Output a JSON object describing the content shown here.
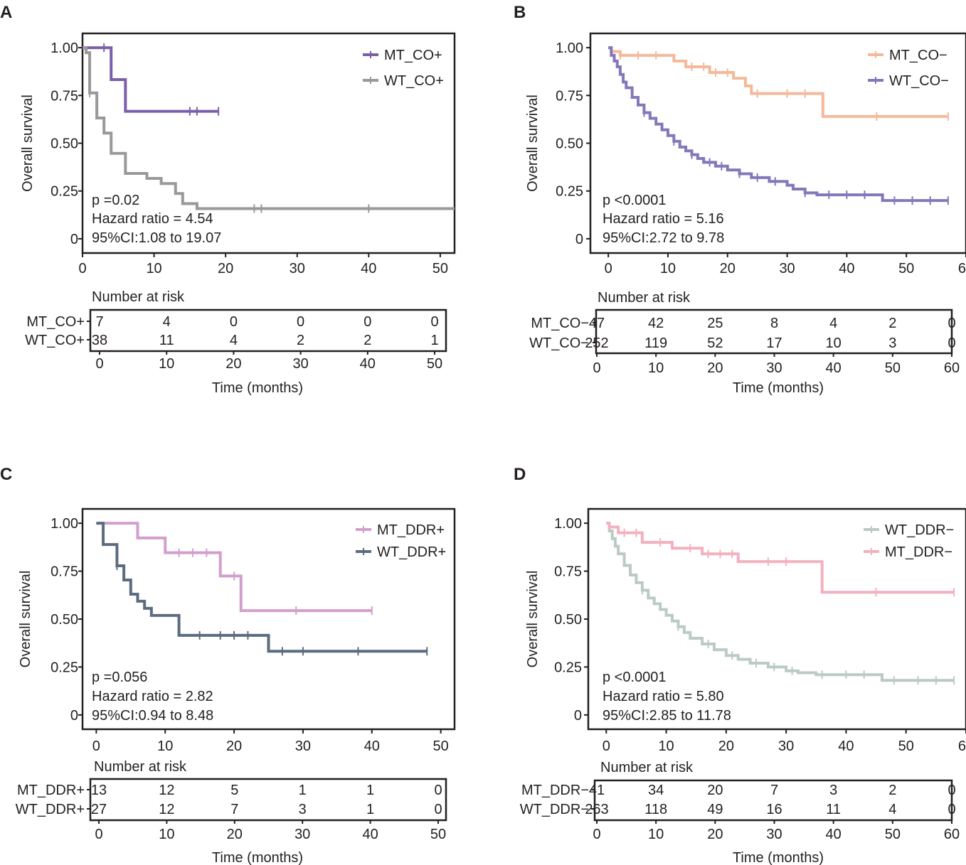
{
  "chart_data": [
    {
      "type": "line",
      "subtype": "kaplan-meier",
      "panel": "A",
      "ylabel": "Overall survival",
      "xlabel": "Time (months)",
      "xlim": [
        0,
        52
      ],
      "ylim": [
        0,
        1
      ],
      "yticks": [
        "0",
        "0.25",
        "0.50",
        "0.75",
        "1.00"
      ],
      "ytick_values": [
        0,
        0.25,
        0.5,
        0.75,
        1
      ],
      "xticks": [
        0,
        10,
        20,
        30,
        40,
        50
      ],
      "stats": [
        "p =0.02",
        "Hazard ratio = 4.54",
        "95%CI:1.08 to 19.07"
      ],
      "legend_position": "top-right",
      "series": [
        {
          "name": "MT_CO+",
          "color": "#7b5fa8",
          "steps": [
            [
              0,
              1
            ],
            [
              4,
              0.833
            ],
            [
              6,
              0.667
            ],
            [
              19,
              0.667
            ]
          ],
          "censor": [
            [
              3,
              1
            ],
            [
              15,
              0.667
            ],
            [
              16,
              0.667
            ],
            [
              19,
              0.667
            ]
          ]
        },
        {
          "name": "WT_CO+",
          "color": "#999999",
          "steps": [
            [
              0,
              1
            ],
            [
              0.5,
              0.974
            ],
            [
              1,
              0.763
            ],
            [
              2,
              0.632
            ],
            [
              3,
              0.553
            ],
            [
              4,
              0.447
            ],
            [
              6,
              0.342
            ],
            [
              9,
              0.316
            ],
            [
              11,
              0.289
            ],
            [
              13,
              0.237
            ],
            [
              14,
              0.184
            ],
            [
              16,
              0.158
            ],
            [
              52,
              0.158
            ]
          ],
          "censor": [
            [
              1,
              0.763
            ],
            [
              24,
              0.158
            ],
            [
              25,
              0.158
            ],
            [
              40,
              0.158
            ]
          ]
        }
      ],
      "risk_table": {
        "title": "Number at risk",
        "times": [
          0,
          10,
          20,
          30,
          40,
          50
        ],
        "xlim": [
          0,
          52
        ],
        "rows": [
          {
            "label": "MT_CO+",
            "values": [
              "7",
              "4",
              "0",
              "0",
              "0",
              "0"
            ]
          },
          {
            "label": "WT_CO+",
            "values": [
              "38",
              "11",
              "4",
              "2",
              "2",
              "1"
            ]
          }
        ]
      }
    },
    {
      "type": "line",
      "subtype": "kaplan-meier",
      "panel": "B",
      "ylabel": "Overall survival",
      "xlabel": "Time (months)",
      "xlim": [
        -3,
        60
      ],
      "ylim": [
        0,
        1
      ],
      "yticks": [
        "0",
        "0.25",
        "0.50",
        "0.75",
        "1.00"
      ],
      "ytick_values": [
        0,
        0.25,
        0.5,
        0.75,
        1
      ],
      "xticks": [
        0,
        10,
        20,
        30,
        40,
        50,
        60
      ],
      "stats": [
        "p <0.0001",
        "Hazard ratio = 5.16",
        "95%CI:2.72 to 9.78"
      ],
      "legend_position": "top-right",
      "series": [
        {
          "name": "MT_CO−",
          "color": "#f4b99b",
          "steps": [
            [
              0,
              1
            ],
            [
              0.5,
              0.98
            ],
            [
              2,
              0.96
            ],
            [
              11,
              0.93
            ],
            [
              13,
              0.9
            ],
            [
              17,
              0.87
            ],
            [
              21,
              0.84
            ],
            [
              23,
              0.8
            ],
            [
              24,
              0.76
            ],
            [
              36,
              0.76
            ],
            [
              36,
              0.64
            ],
            [
              57,
              0.64
            ]
          ],
          "censor": [
            [
              2,
              0.96
            ],
            [
              5,
              0.96
            ],
            [
              8,
              0.96
            ],
            [
              14,
              0.9
            ],
            [
              16,
              0.9
            ],
            [
              18,
              0.87
            ],
            [
              20,
              0.87
            ],
            [
              25,
              0.76
            ],
            [
              30,
              0.76
            ],
            [
              33,
              0.76
            ],
            [
              45,
              0.64
            ],
            [
              57,
              0.64
            ]
          ]
        },
        {
          "name": "WT_CO−",
          "color": "#8478bb",
          "steps": [
            [
              0,
              1
            ],
            [
              0.5,
              0.96
            ],
            [
              1,
              0.93
            ],
            [
              1.5,
              0.9
            ],
            [
              2,
              0.86
            ],
            [
              2.5,
              0.82
            ],
            [
              3,
              0.79
            ],
            [
              4,
              0.74
            ],
            [
              5,
              0.7
            ],
            [
              6,
              0.66
            ],
            [
              7,
              0.63
            ],
            [
              8,
              0.6
            ],
            [
              9,
              0.57
            ],
            [
              10,
              0.54
            ],
            [
              11,
              0.51
            ],
            [
              12,
              0.48
            ],
            [
              13,
              0.46
            ],
            [
              14,
              0.44
            ],
            [
              15,
              0.42
            ],
            [
              16,
              0.4
            ],
            [
              18,
              0.38
            ],
            [
              20,
              0.36
            ],
            [
              22,
              0.34
            ],
            [
              24,
              0.32
            ],
            [
              27,
              0.3
            ],
            [
              30,
              0.28
            ],
            [
              31,
              0.26
            ],
            [
              33,
              0.24
            ],
            [
              35,
              0.23
            ],
            [
              46,
              0.23
            ],
            [
              46,
              0.2
            ],
            [
              57,
              0.2
            ]
          ],
          "censor": [
            [
              6,
              0.66
            ],
            [
              11,
              0.51
            ],
            [
              14,
              0.44
            ],
            [
              17,
              0.4
            ],
            [
              19,
              0.38
            ],
            [
              22,
              0.34
            ],
            [
              25,
              0.32
            ],
            [
              28,
              0.3
            ],
            [
              33,
              0.24
            ],
            [
              37,
              0.23
            ],
            [
              40,
              0.23
            ],
            [
              43,
              0.23
            ],
            [
              48,
              0.2
            ],
            [
              51,
              0.2
            ],
            [
              54,
              0.2
            ],
            [
              57,
              0.2
            ]
          ]
        }
      ],
      "risk_table": {
        "title": "Number at risk",
        "times": [
          0,
          10,
          20,
          30,
          40,
          50,
          60
        ],
        "xlim": [
          -3,
          63
        ],
        "rows": [
          {
            "label": "MT_CO−",
            "values": [
              "47",
              "42",
              "25",
              "8",
              "4",
              "2",
              "0"
            ]
          },
          {
            "label": "WT_CO−",
            "values": [
              "252",
              "119",
              "52",
              "17",
              "10",
              "3",
              "0"
            ]
          }
        ]
      }
    },
    {
      "type": "line",
      "subtype": "kaplan-meier",
      "panel": "C",
      "ylabel": "Overall survival",
      "xlabel": "Time (months)",
      "xlim": [
        -2,
        52
      ],
      "ylim": [
        0,
        1
      ],
      "yticks": [
        "0",
        "0.25",
        "0.50",
        "0.75",
        "1.00"
      ],
      "ytick_values": [
        0,
        0.25,
        0.5,
        0.75,
        1
      ],
      "xticks": [
        0,
        10,
        20,
        30,
        40,
        50
      ],
      "stats": [
        "p =0.056",
        "Hazard ratio = 2.82",
        "95%CI:0.94 to 8.48"
      ],
      "legend_position": "top-right",
      "series": [
        {
          "name": "MT_DDR+",
          "color": "#d29fcd",
          "steps": [
            [
              0,
              1
            ],
            [
              6,
              0.923
            ],
            [
              10,
              0.846
            ],
            [
              18,
              0.846
            ],
            [
              18,
              0.725
            ],
            [
              21,
              0.725
            ],
            [
              21,
              0.544
            ],
            [
              40,
              0.544
            ]
          ],
          "censor": [
            [
              12,
              0.846
            ],
            [
              14,
              0.846
            ],
            [
              16,
              0.846
            ],
            [
              20,
              0.725
            ],
            [
              29,
              0.544
            ],
            [
              40,
              0.544
            ]
          ]
        },
        {
          "name": "WT_DDR+",
          "color": "#5c6c80",
          "steps": [
            [
              0,
              1
            ],
            [
              1,
              0.889
            ],
            [
              3,
              0.778
            ],
            [
              4,
              0.704
            ],
            [
              5,
              0.63
            ],
            [
              6,
              0.593
            ],
            [
              7,
              0.556
            ],
            [
              8,
              0.519
            ],
            [
              12,
              0.415
            ],
            [
              25,
              0.415
            ],
            [
              25,
              0.332
            ],
            [
              48,
              0.332
            ]
          ],
          "censor": [
            [
              3,
              0.778
            ],
            [
              15,
              0.415
            ],
            [
              18,
              0.415
            ],
            [
              20,
              0.415
            ],
            [
              22,
              0.415
            ],
            [
              27,
              0.332
            ],
            [
              30,
              0.332
            ],
            [
              38,
              0.332
            ],
            [
              48,
              0.332
            ]
          ]
        }
      ],
      "risk_table": {
        "title": "Number at risk",
        "times": [
          0,
          10,
          20,
          30,
          40,
          50
        ],
        "xlim": [
          -1.5,
          52.5
        ],
        "rows": [
          {
            "label": "MT_DDR+",
            "values": [
              "13",
              "12",
              "5",
              "1",
              "1",
              "0"
            ]
          },
          {
            "label": "WT_DDR+",
            "values": [
              "27",
              "12",
              "7",
              "3",
              "1",
              "0"
            ]
          }
        ]
      }
    },
    {
      "type": "line",
      "subtype": "kaplan-meier",
      "panel": "D",
      "ylabel": "Overall survival",
      "xlabel": "Time (months)",
      "xlim": [
        -3,
        60
      ],
      "ylim": [
        0,
        1
      ],
      "yticks": [
        "0",
        "0.25",
        "0.50",
        "0.75",
        "1.00"
      ],
      "ytick_values": [
        0,
        0.25,
        0.5,
        0.75,
        1
      ],
      "xticks": [
        0,
        10,
        20,
        30,
        40,
        50,
        60
      ],
      "stats": [
        "p <0.0001",
        "Hazard ratio = 5.80",
        "95%CI:2.85 to 11.78"
      ],
      "legend_position": "top-right",
      "series": [
        {
          "name": "WT_DDR−",
          "color": "#bccac5",
          "steps": [
            [
              0,
              1
            ],
            [
              0.5,
              0.96
            ],
            [
              1,
              0.92
            ],
            [
              1.5,
              0.88
            ],
            [
              2,
              0.84
            ],
            [
              3,
              0.78
            ],
            [
              4,
              0.73
            ],
            [
              5,
              0.69
            ],
            [
              6,
              0.65
            ],
            [
              7,
              0.61
            ],
            [
              8,
              0.58
            ],
            [
              9,
              0.55
            ],
            [
              10,
              0.52
            ],
            [
              11,
              0.49
            ],
            [
              12,
              0.46
            ],
            [
              13,
              0.43
            ],
            [
              14,
              0.4
            ],
            [
              16,
              0.37
            ],
            [
              18,
              0.34
            ],
            [
              20,
              0.31
            ],
            [
              22,
              0.29
            ],
            [
              24,
              0.27
            ],
            [
              27,
              0.25
            ],
            [
              30,
              0.23
            ],
            [
              32,
              0.22
            ],
            [
              35,
              0.21
            ],
            [
              46,
              0.21
            ],
            [
              46,
              0.18
            ],
            [
              58,
              0.18
            ]
          ],
          "censor": [
            [
              6,
              0.65
            ],
            [
              12,
              0.46
            ],
            [
              17,
              0.37
            ],
            [
              21,
              0.31
            ],
            [
              25,
              0.27
            ],
            [
              28,
              0.25
            ],
            [
              31,
              0.23
            ],
            [
              36,
              0.21
            ],
            [
              40,
              0.21
            ],
            [
              43,
              0.21
            ],
            [
              48,
              0.18
            ],
            [
              52,
              0.18
            ],
            [
              55,
              0.18
            ],
            [
              58,
              0.18
            ]
          ]
        },
        {
          "name": "MT_DDR−",
          "color": "#f3b1bf",
          "steps": [
            [
              0,
              1
            ],
            [
              0.5,
              0.98
            ],
            [
              2,
              0.95
            ],
            [
              6,
              0.9
            ],
            [
              11,
              0.87
            ],
            [
              16,
              0.84
            ],
            [
              22,
              0.8
            ],
            [
              36,
              0.8
            ],
            [
              36,
              0.64
            ],
            [
              58,
              0.64
            ]
          ],
          "censor": [
            [
              3,
              0.95
            ],
            [
              5,
              0.95
            ],
            [
              9,
              0.9
            ],
            [
              14,
              0.87
            ],
            [
              17,
              0.84
            ],
            [
              19,
              0.84
            ],
            [
              21,
              0.84
            ],
            [
              27,
              0.8
            ],
            [
              30,
              0.8
            ],
            [
              45,
              0.64
            ],
            [
              58,
              0.64
            ]
          ]
        }
      ],
      "risk_table": {
        "title": "Number at risk",
        "times": [
          0,
          10,
          20,
          30,
          40,
          50,
          60
        ],
        "xlim": [
          -3,
          63
        ],
        "rows": [
          {
            "label": "MT_DDR−",
            "values": [
              "41",
              "34",
              "20",
              "7",
              "3",
              "2",
              "0"
            ]
          },
          {
            "label": "WT_DDR−",
            "values": [
              "263",
              "118",
              "49",
              "16",
              "11",
              "4",
              "0"
            ]
          }
        ]
      }
    }
  ]
}
